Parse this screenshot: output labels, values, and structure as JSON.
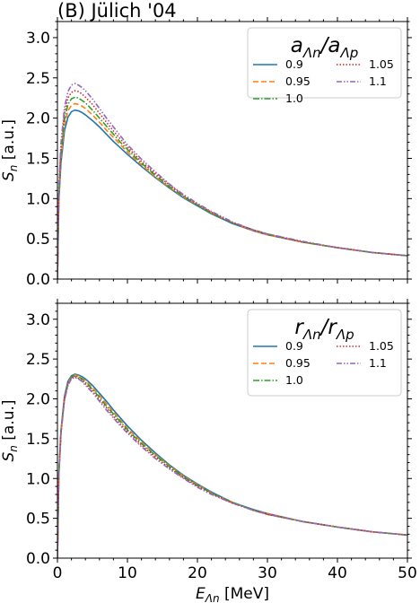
{
  "figure_label": "(B) Jülich '04",
  "chart_data": [
    {
      "type": "line",
      "panel": "top",
      "legend_title_parts": {
        "a": "a",
        "sub1": "Λn",
        "slash": "/",
        "b": "a",
        "sub2": "Λp"
      },
      "legend_placement": "top-right",
      "ylabel_main": "S",
      "ylabel_sub": "n",
      "ylabel_unit": " [a.u.]",
      "xlim": [
        0,
        50
      ],
      "ylim": [
        0,
        3.2
      ],
      "xticks": [
        0,
        10,
        20,
        30,
        40,
        50
      ],
      "yticks": [
        "0.0",
        "0.5",
        "1.0",
        "1.5",
        "2.0",
        "2.5",
        "3.0"
      ],
      "x": [
        0,
        0.2,
        0.5,
        1,
        1.5,
        2,
        2.5,
        3,
        3.5,
        4,
        5,
        6,
        7,
        8,
        9,
        10,
        12,
        14,
        16,
        18,
        20,
        22,
        25,
        28,
        30,
        35,
        40,
        45,
        50
      ],
      "series": [
        {
          "name": "0.9",
          "color": "#1f77b4",
          "dash": "",
          "values": [
            0,
            0.97,
            1.44,
            1.84,
            2.01,
            2.08,
            2.1,
            2.09,
            2.07,
            2.04,
            1.97,
            1.89,
            1.8,
            1.71,
            1.63,
            1.55,
            1.4,
            1.26,
            1.13,
            1.01,
            0.91,
            0.81,
            0.69,
            0.6,
            0.55,
            0.46,
            0.39,
            0.33,
            0.29
          ]
        },
        {
          "name": "0.95",
          "color": "#ff7f0e",
          "dash": "6,3",
          "values": [
            0,
            1.01,
            1.5,
            1.91,
            2.09,
            2.16,
            2.18,
            2.17,
            2.15,
            2.12,
            2.04,
            1.95,
            1.85,
            1.76,
            1.67,
            1.58,
            1.42,
            1.27,
            1.14,
            1.02,
            0.92,
            0.82,
            0.7,
            0.6,
            0.55,
            0.46,
            0.39,
            0.33,
            0.29
          ]
        },
        {
          "name": "1.0",
          "color": "#2ca02c",
          "dash": "7,2,1.5,2",
          "values": [
            0,
            1.05,
            1.56,
            1.98,
            2.17,
            2.24,
            2.26,
            2.25,
            2.22,
            2.19,
            2.1,
            2.0,
            1.9,
            1.8,
            1.7,
            1.61,
            1.44,
            1.29,
            1.15,
            1.03,
            0.92,
            0.82,
            0.7,
            0.61,
            0.56,
            0.46,
            0.39,
            0.33,
            0.29
          ]
        },
        {
          "name": "1.05",
          "color": "#d62728",
          "dash": "1.5,2",
          "values": [
            0,
            1.09,
            1.62,
            2.06,
            2.25,
            2.32,
            2.34,
            2.33,
            2.3,
            2.26,
            2.17,
            2.06,
            1.95,
            1.84,
            1.74,
            1.64,
            1.46,
            1.31,
            1.17,
            1.04,
            0.93,
            0.83,
            0.7,
            0.61,
            0.56,
            0.46,
            0.39,
            0.33,
            0.29
          ]
        },
        {
          "name": "1.1",
          "color": "#9467bd",
          "dash": "6,2,1.5,2,1.5,2",
          "values": [
            0,
            1.13,
            1.68,
            2.13,
            2.33,
            2.41,
            2.43,
            2.41,
            2.38,
            2.34,
            2.24,
            2.12,
            2.0,
            1.89,
            1.78,
            1.67,
            1.49,
            1.33,
            1.18,
            1.05,
            0.94,
            0.84,
            0.71,
            0.61,
            0.56,
            0.47,
            0.39,
            0.33,
            0.29
          ]
        }
      ]
    },
    {
      "type": "line",
      "panel": "bottom",
      "legend_title_parts": {
        "a": "r",
        "sub1": "Λn",
        "slash": "/",
        "b": "r",
        "sub2": "Λp"
      },
      "legend_placement": "top-right",
      "ylabel_main": "S",
      "ylabel_sub": "n",
      "ylabel_unit": " [a.u.]",
      "xlabel_main": "E",
      "xlabel_sub": "Λn",
      "xlabel_unit": " [MeV]",
      "xlim": [
        0,
        50
      ],
      "ylim": [
        0,
        3.2
      ],
      "xticks": [
        0,
        10,
        20,
        30,
        40,
        50
      ],
      "yticks": [
        "0.0",
        "0.5",
        "1.0",
        "1.5",
        "2.0",
        "2.5",
        "3.0"
      ],
      "x": [
        0,
        0.2,
        0.5,
        1,
        1.5,
        2,
        2.5,
        3,
        3.5,
        4,
        5,
        6,
        7,
        8,
        9,
        10,
        12,
        14,
        16,
        18,
        20,
        22,
        25,
        28,
        30,
        35,
        40,
        45,
        50
      ],
      "series": [
        {
          "name": "0.9",
          "color": "#1f77b4",
          "dash": "",
          "values": [
            0,
            1.07,
            1.6,
            2.03,
            2.22,
            2.29,
            2.31,
            2.3,
            2.28,
            2.25,
            2.17,
            2.07,
            1.97,
            1.86,
            1.76,
            1.66,
            1.48,
            1.32,
            1.17,
            1.04,
            0.93,
            0.83,
            0.7,
            0.61,
            0.56,
            0.46,
            0.39,
            0.33,
            0.29
          ]
        },
        {
          "name": "0.95",
          "color": "#ff7f0e",
          "dash": "6,3",
          "values": [
            0,
            1.06,
            1.58,
            2.01,
            2.2,
            2.28,
            2.3,
            2.29,
            2.26,
            2.23,
            2.14,
            2.04,
            1.94,
            1.83,
            1.73,
            1.63,
            1.46,
            1.3,
            1.16,
            1.03,
            0.92,
            0.82,
            0.7,
            0.6,
            0.56,
            0.46,
            0.39,
            0.33,
            0.29
          ]
        },
        {
          "name": "1.0",
          "color": "#2ca02c",
          "dash": "7,2,1.5,2",
          "values": [
            0,
            1.05,
            1.57,
            2.0,
            2.19,
            2.27,
            2.29,
            2.28,
            2.25,
            2.21,
            2.12,
            2.02,
            1.91,
            1.81,
            1.71,
            1.61,
            1.44,
            1.29,
            1.15,
            1.02,
            0.91,
            0.82,
            0.7,
            0.6,
            0.55,
            0.46,
            0.39,
            0.33,
            0.29
          ]
        },
        {
          "name": "1.05",
          "color": "#d62728",
          "dash": "1.5,2",
          "values": [
            0,
            1.04,
            1.56,
            1.99,
            2.18,
            2.26,
            2.28,
            2.26,
            2.23,
            2.19,
            2.1,
            1.99,
            1.89,
            1.78,
            1.68,
            1.59,
            1.42,
            1.27,
            1.13,
            1.01,
            0.9,
            0.81,
            0.69,
            0.6,
            0.55,
            0.46,
            0.39,
            0.33,
            0.29
          ]
        },
        {
          "name": "1.1",
          "color": "#9467bd",
          "dash": "6,2,1.5,2,1.5,2",
          "values": [
            0,
            1.03,
            1.55,
            1.98,
            2.17,
            2.25,
            2.27,
            2.25,
            2.22,
            2.17,
            2.08,
            1.97,
            1.86,
            1.76,
            1.66,
            1.57,
            1.4,
            1.25,
            1.12,
            1.0,
            0.89,
            0.8,
            0.69,
            0.6,
            0.55,
            0.46,
            0.39,
            0.33,
            0.29
          ]
        }
      ]
    }
  ]
}
